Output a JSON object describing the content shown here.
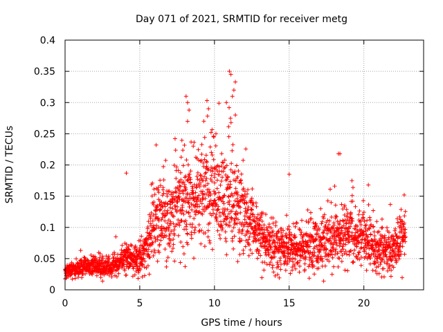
{
  "chart_data": {
    "type": "scatter",
    "title": "Day 071 of 2021, SRMTID for receiver metg",
    "xlabel": "GPS time / hours",
    "ylabel": "SRMTID / TECUs",
    "xlim": [
      0,
      24
    ],
    "ylim": [
      0,
      0.4
    ],
    "x_ticks": [
      0,
      5,
      10,
      15,
      20
    ],
    "x_tick_labels": [
      "0",
      "5",
      "10",
      "15",
      "20"
    ],
    "y_ticks": [
      0,
      0.05,
      0.1,
      0.15,
      0.2,
      0.25,
      0.3,
      0.35,
      0.4
    ],
    "y_tick_labels": [
      "0",
      "0.05",
      "0.1",
      "0.15",
      "0.2",
      "0.25",
      "0.3",
      "0.35",
      "0.4"
    ],
    "grid": true,
    "marker": "+",
    "marker_color": "#ff0000",
    "profile": {
      "x": [
        0,
        1,
        2,
        3,
        4,
        5,
        5.5,
        6,
        7,
        8,
        9,
        10,
        11,
        12,
        13,
        14,
        15,
        16,
        17,
        18,
        19,
        20,
        21,
        22,
        22.8
      ],
      "y": [
        0.03,
        0.035,
        0.04,
        0.035,
        0.05,
        0.045,
        0.075,
        0.11,
        0.12,
        0.14,
        0.155,
        0.15,
        0.14,
        0.12,
        0.09,
        0.07,
        0.065,
        0.065,
        0.07,
        0.085,
        0.09,
        0.08,
        0.065,
        0.065,
        0.09
      ],
      "spread": [
        0.01,
        0.012,
        0.015,
        0.012,
        0.02,
        0.02,
        0.03,
        0.05,
        0.06,
        0.065,
        0.07,
        0.07,
        0.065,
        0.05,
        0.04,
        0.03,
        0.03,
        0.03,
        0.035,
        0.04,
        0.04,
        0.035,
        0.03,
        0.03,
        0.035
      ]
    },
    "samples_per_hour": 110,
    "outliers": [
      {
        "x": 4.1,
        "y": 0.187
      },
      {
        "x": 6.1,
        "y": 0.232
      },
      {
        "x": 8.1,
        "y": 0.31
      },
      {
        "x": 8.2,
        "y": 0.3
      },
      {
        "x": 8.3,
        "y": 0.288
      },
      {
        "x": 8.2,
        "y": 0.27
      },
      {
        "x": 9.5,
        "y": 0.303
      },
      {
        "x": 9.6,
        "y": 0.29
      },
      {
        "x": 10.1,
        "y": 0.25
      },
      {
        "x": 10.8,
        "y": 0.3
      },
      {
        "x": 11.0,
        "y": 0.35
      },
      {
        "x": 11.1,
        "y": 0.345
      },
      {
        "x": 11.4,
        "y": 0.333
      },
      {
        "x": 11.3,
        "y": 0.32
      },
      {
        "x": 11.4,
        "y": 0.28
      },
      {
        "x": 11.2,
        "y": 0.31
      },
      {
        "x": 15.0,
        "y": 0.185
      },
      {
        "x": 18.3,
        "y": 0.218
      },
      {
        "x": 18.4,
        "y": 0.218
      },
      {
        "x": 19.2,
        "y": 0.175
      },
      {
        "x": 20.3,
        "y": 0.168
      },
      {
        "x": 22.7,
        "y": 0.152
      }
    ]
  }
}
